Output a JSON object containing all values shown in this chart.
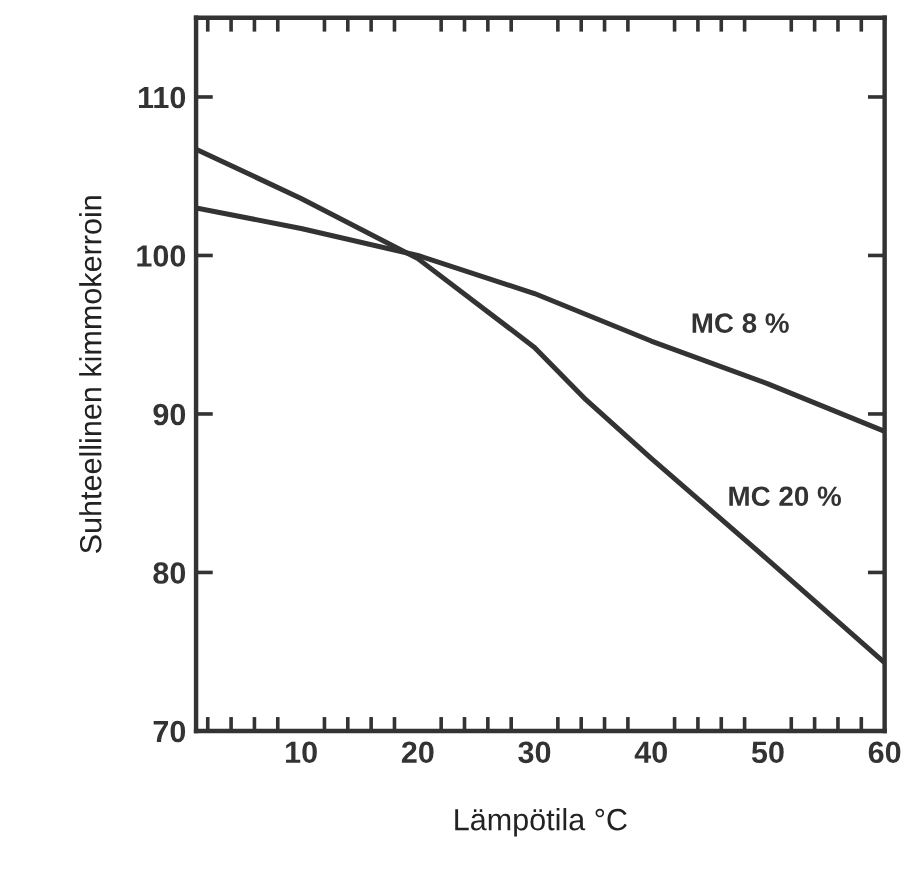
{
  "chart_data": {
    "type": "line",
    "xlabel": "Lämpötila °C",
    "ylabel": "Suhteellinen kimmokerroin",
    "xlim": [
      1,
      60
    ],
    "xticks": [
      10,
      20,
      30,
      40,
      50,
      60
    ],
    "ylim": [
      70,
      115
    ],
    "yticks": [
      70,
      80,
      90,
      100,
      110
    ],
    "grid": false,
    "legend": false,
    "marker": "none",
    "line_style": "solid",
    "series": [
      {
        "name": "MC 8 %",
        "color": "#333333",
        "x": [
          1,
          10,
          20,
          30,
          40,
          50,
          60
        ],
        "values": [
          103,
          101.7,
          100,
          97.6,
          94.6,
          91.9,
          88.9
        ]
      },
      {
        "name": "MC 20 %",
        "color": "#333333",
        "x": [
          1,
          10,
          20,
          30,
          34.4,
          40,
          50,
          60
        ],
        "values": [
          106.7,
          103.6,
          99.8,
          94.2,
          90.9,
          87.2,
          80.8,
          74.3
        ]
      }
    ]
  }
}
